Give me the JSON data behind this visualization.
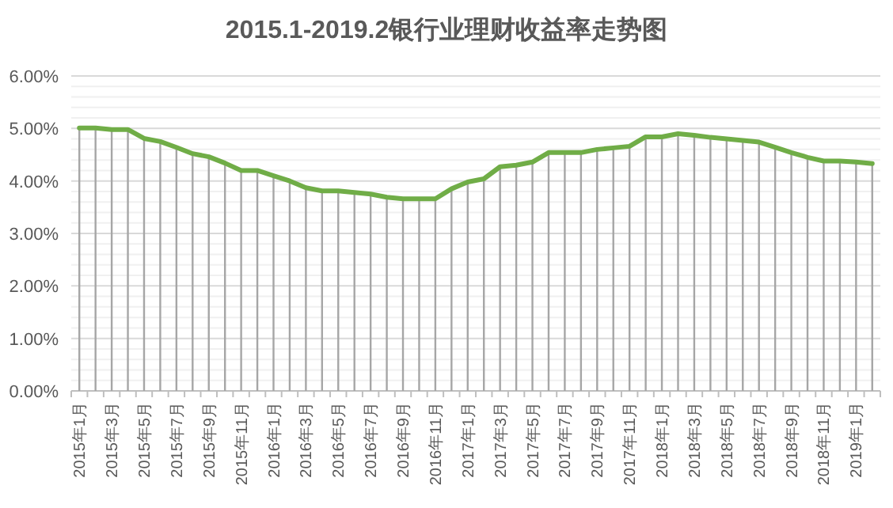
{
  "chart_data": {
    "type": "line",
    "title": "2015.1-2019.2银行业理财收益率走势图",
    "categories": [
      "2015年1月",
      null,
      "2015年3月",
      null,
      "2015年5月",
      null,
      "2015年7月",
      null,
      "2015年9月",
      null,
      "2015年11月",
      null,
      "2016年1月",
      null,
      "2016年3月",
      null,
      "2016年5月",
      null,
      "2016年7月",
      null,
      "2016年9月",
      null,
      "2016年11月",
      null,
      "2017年1月",
      null,
      "2017年3月",
      null,
      "2017年5月",
      null,
      "2017年7月",
      null,
      "2017年9月",
      null,
      "2017年11月",
      null,
      "2018年1月",
      null,
      "2018年3月",
      null,
      "2018年5月",
      null,
      "2018年7月",
      null,
      "2018年9月",
      null,
      "2018年11月",
      null,
      "2019年1月",
      null
    ],
    "series": [
      {
        "color": "#70ad47",
        "values": [
          5.01,
          5.01,
          4.98,
          4.98,
          4.81,
          4.75,
          4.64,
          4.52,
          4.46,
          4.34,
          4.2,
          4.2,
          4.1,
          4.0,
          3.87,
          3.81,
          3.81,
          3.78,
          3.75,
          3.69,
          3.66,
          3.66,
          3.66,
          3.85,
          3.98,
          4.04,
          4.27,
          4.3,
          4.36,
          4.54,
          4.54,
          4.54,
          4.6,
          4.63,
          4.66,
          4.84,
          4.84,
          4.9,
          4.87,
          4.83,
          4.8,
          4.77,
          4.74,
          4.64,
          4.54,
          4.45,
          4.38,
          4.38,
          4.36,
          4.33
        ]
      }
    ],
    "ylim": [
      0,
      6
    ],
    "yticks": [
      {
        "value": 0,
        "label": "0.00%"
      },
      {
        "value": 0.2,
        "label": null
      },
      {
        "value": 0.4,
        "label": null
      },
      {
        "value": 0.6,
        "label": null
      },
      {
        "value": 0.8,
        "label": null
      },
      {
        "value": 1,
        "label": "1.00%"
      },
      {
        "value": 1.2,
        "label": null
      },
      {
        "value": 1.4,
        "label": null
      },
      {
        "value": 1.6,
        "label": null
      },
      {
        "value": 1.8,
        "label": null
      },
      {
        "value": 2,
        "label": "2.00%"
      },
      {
        "value": 2.2,
        "label": null
      },
      {
        "value": 2.4,
        "label": null
      },
      {
        "value": 2.6,
        "label": null
      },
      {
        "value": 2.8,
        "label": null
      },
      {
        "value": 3,
        "label": "3.00%"
      },
      {
        "value": 3.2,
        "label": null
      },
      {
        "value": 3.4,
        "label": null
      },
      {
        "value": 3.6,
        "label": null
      },
      {
        "value": 3.8,
        "label": null
      },
      {
        "value": 4,
        "label": "4.00%"
      },
      {
        "value": 4.2,
        "label": null
      },
      {
        "value": 4.4,
        "label": null
      },
      {
        "value": 4.6,
        "label": null
      },
      {
        "value": 4.8,
        "label": null
      },
      {
        "value": 5,
        "label": "5.00%"
      },
      {
        "value": 5.2,
        "label": null
      },
      {
        "value": 5.4,
        "label": null
      },
      {
        "value": 5.6,
        "label": null
      },
      {
        "value": 5.8,
        "label": null
      },
      {
        "value": 6,
        "label": "6.00%"
      }
    ],
    "grid": true
  }
}
